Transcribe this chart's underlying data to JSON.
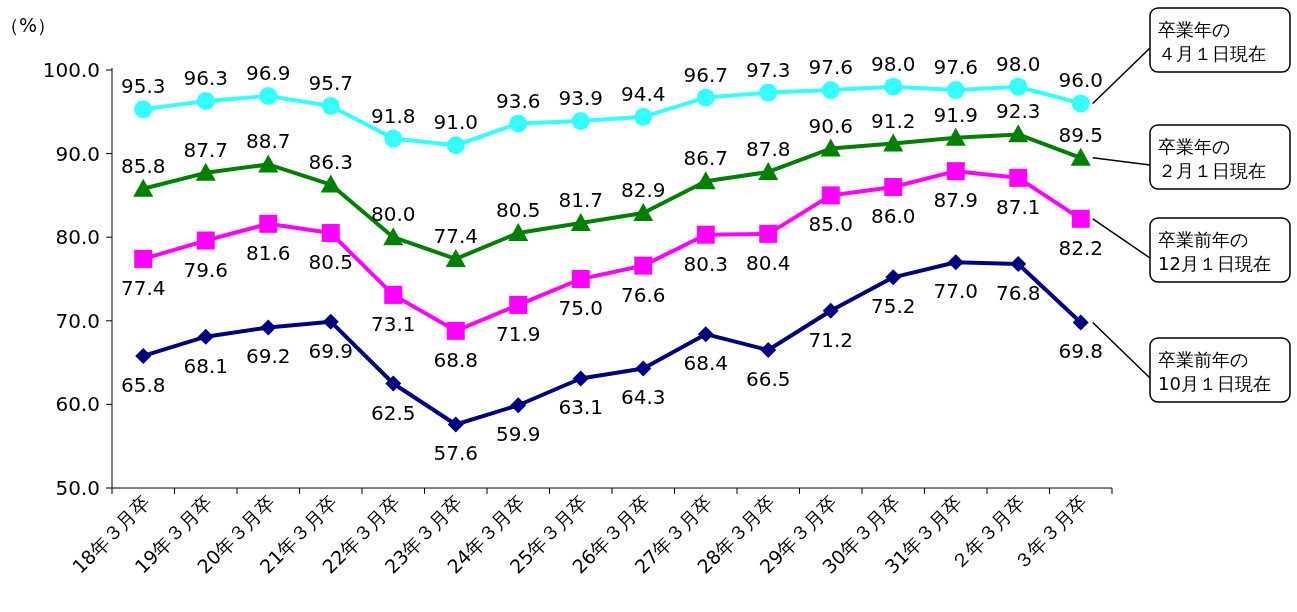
{
  "chart_data": {
    "type": "line",
    "ylabel": "（%）",
    "categories": [
      "18年３月卒",
      "19年３月卒",
      "20年３月卒",
      "21年３月卒",
      "22年３月卒",
      "23年３月卒",
      "24年３月卒",
      "25年３月卒",
      "26年３月卒",
      "27年３月卒",
      "28年３月卒",
      "29年３月卒",
      "30年３月卒",
      "31年３月卒",
      "２年３月卒",
      "３年３月卒"
    ],
    "ylim": [
      50,
      100
    ],
    "yticks": [
      {
        "value": 50,
        "label": "50.0"
      },
      {
        "value": 60,
        "label": "60.0"
      },
      {
        "value": 70,
        "label": "70.0"
      },
      {
        "value": 80,
        "label": "80.0"
      },
      {
        "value": 90,
        "label": "90.0"
      },
      {
        "value": 100,
        "label": "100.0"
      }
    ],
    "grid": false,
    "series": [
      {
        "name": "卒業年の４月１日現在",
        "color": "#33ffff",
        "marker": "circle",
        "values": [
          95.3,
          96.3,
          96.9,
          95.7,
          91.8,
          91.0,
          93.6,
          93.9,
          94.4,
          96.7,
          97.3,
          97.6,
          98.0,
          97.6,
          98.0,
          96.0
        ],
        "value_labels": [
          "95.3",
          "96.3",
          "96.9",
          "95.7",
          "91.8",
          "91.0",
          "93.6",
          "93.9",
          "94.4",
          "96.7",
          "97.3",
          "97.6",
          "98.0",
          "97.6",
          "98.0",
          "96.0"
        ]
      },
      {
        "name": "卒業年の２月１日現在",
        "color": "#008000",
        "marker": "triangle",
        "values": [
          85.8,
          87.7,
          88.7,
          86.3,
          80.0,
          77.4,
          80.5,
          81.7,
          82.9,
          86.7,
          87.8,
          90.6,
          91.2,
          91.9,
          92.3,
          89.5
        ],
        "value_labels": [
          "85.8",
          "87.7",
          "88.7",
          "86.3",
          "80.0",
          "77.4",
          "80.5",
          "81.7",
          "82.9",
          "86.7",
          "87.8",
          "90.6",
          "91.2",
          "91.9",
          "92.3",
          "89.5"
        ]
      },
      {
        "name": "卒業前年の12月１日現在",
        "color": "#ff00ff",
        "marker": "square",
        "values": [
          77.4,
          79.6,
          81.6,
          80.5,
          73.1,
          68.8,
          71.9,
          75.0,
          76.6,
          80.3,
          80.4,
          85.0,
          86.0,
          87.9,
          87.1,
          82.2
        ],
        "value_labels": [
          "77.4",
          "79.6",
          "81.6",
          "80.5",
          "73.1",
          "68.8",
          "71.9",
          "75.0",
          "76.6",
          "80.3",
          "80.4",
          "85.0",
          "86.0",
          "87.9",
          "87.1",
          "82.2"
        ]
      },
      {
        "name": "卒業前年の10月１日現在",
        "color": "#000080",
        "marker": "diamond",
        "values": [
          65.8,
          68.1,
          69.2,
          69.9,
          62.5,
          57.6,
          59.9,
          63.1,
          64.3,
          68.4,
          66.5,
          71.2,
          75.2,
          77.0,
          76.8,
          69.8
        ],
        "value_labels": [
          "65.8",
          "68.1",
          "69.2",
          "69.9",
          "62.5",
          "57.6",
          "59.9",
          "63.1",
          "64.3",
          "68.4",
          "66.5",
          "71.2",
          "75.2",
          "77.0",
          "76.8",
          "69.8"
        ]
      }
    ]
  }
}
